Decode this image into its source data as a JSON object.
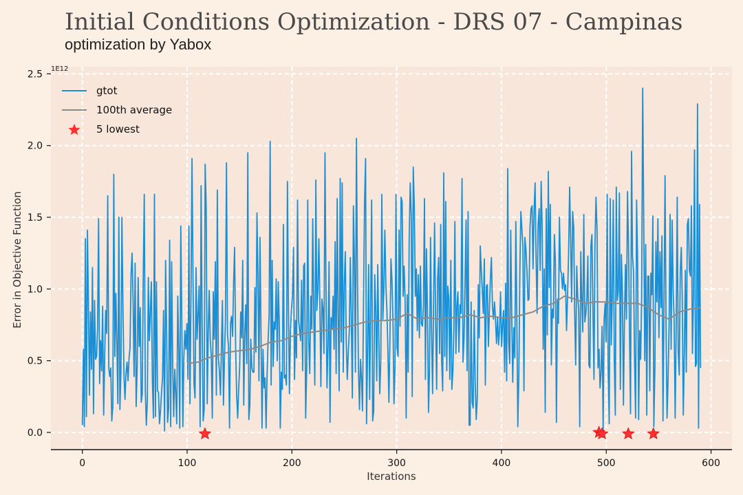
{
  "title": "Initial Conditions Optimization - DRS 07 - Campinas",
  "subtitle": "optimization by Yabox",
  "colors": {
    "background": "#fcefe4",
    "plot_background": "#f8e6da",
    "gtot": "#1a8fd6",
    "average": "#8a8a8a",
    "lowest": "#ff3030"
  },
  "chart_data": {
    "type": "line",
    "xlabel": "Iterations",
    "ylabel": "Error in Objective Function",
    "y_offset_label": "1E12",
    "xlim": [
      -30,
      620
    ],
    "ylim": [
      -0.12,
      2.55
    ],
    "x_ticks": [
      0,
      100,
      200,
      300,
      400,
      500,
      600
    ],
    "x_tick_labels": [
      "0",
      "100",
      "200",
      "300",
      "400",
      "500",
      "600"
    ],
    "y_ticks": [
      0.0,
      0.5,
      1.0,
      1.5,
      2.0,
      2.5
    ],
    "y_tick_labels": [
      "0.0",
      "0.5",
      "1.0",
      "1.5",
      "2.0",
      "2.5"
    ],
    "grid": true,
    "legend_position": "top-left",
    "series": [
      {
        "name": "gtot",
        "x_range": [
          0,
          590
        ],
        "values": [
          0.05,
          0.58,
          0.04,
          1.35,
          0.11,
          1.41,
          0.91,
          0.26,
          0.84,
          0.44,
          1.15,
          0.13,
          0.92,
          0.51,
          0.53,
          0.72,
          1.49,
          0.34,
          0.64,
          0.43,
          0.88,
          0.12,
          0.55,
          0.85,
          0.69,
          1.65,
          0.45,
          0.39,
          0.45,
          0.08,
          0.18,
          1.8,
          0.53,
          0.97,
          0.61,
          0.2,
          1.5,
          0.16,
          0.43,
          1.5,
          0.88,
          0.4,
          0.23,
          0.41,
          0.49,
          0.36,
          0.52,
          0.59,
          1.1,
          1.25,
          0.91,
          0.39,
          1.18,
          0.18,
          0.46,
          1.08,
          0.6,
          0.87,
          0.21,
          0.27,
          1.07,
          1.66,
          0.29,
          0.05,
          0.21,
          1.08,
          0.64,
          0.85,
          1.05,
          0.36,
          0.1,
          1.66,
          0.11,
          1.05,
          0.29,
          0.28,
          0.06,
          0.15,
          0.28,
          0.38,
          0.85,
          0.01,
          1.2,
          0.69,
          0.07,
          0.17,
          1.34,
          0.04,
          1.19,
          0.48,
          0.11,
          0.44,
          0.28,
          0.06,
          0.95,
          0.57,
          0.03,
          1.44,
          0.76,
          0.04,
          0.52,
          0.71,
          0.58,
          0.76,
          0.37,
          1.44,
          0.2,
          0.94,
          1.91,
          1.11,
          0.34,
          0.24,
          1.15,
          0.65,
          0.82,
          1.02,
          0.04,
          1.72,
          0.76,
          0.08,
          0.16,
          1.87,
          1.58,
          0.2,
          0.71,
          0.99,
          0.65,
          0.53,
          0.1,
          0.98,
          0.65,
          1.19,
          0.26,
          1.69,
          0.52,
          0.43,
          0.26,
          0.57,
          0.92,
          0.19,
          0.53,
          0.78,
          1.88,
          0.68,
          0.6,
          0.03,
          0.76,
          0.81,
          0.67,
          1.05,
          1.29,
          0.6,
          0.26,
          0.1,
          0.3,
          0.46,
          0.84,
          0.66,
          1.2,
          0.19,
          0.69,
          0.89,
          0.48,
          1.95,
          0.09,
          0.19,
          0.65,
          0.45,
          0.42,
          0.42,
          1.01,
          0.56,
          1.53,
          1.09,
          0.36,
          1.36,
          0.69,
          0.03,
          0.58,
          0.31,
          0.38,
          0.03,
          0.4,
          0.64,
          0.82,
          2.03,
          0.33,
          1.2,
          0.46,
          0.77,
          0.72,
          1.07,
          0.5,
          1.05,
          0.74,
          0.03,
          0.42,
          0.3,
          1.45,
          0.38,
          0.4,
          0.33,
          1.75,
          0.89,
          0.27,
          0.71,
          0.86,
          0.95,
          1.29,
          0.37,
          0.78,
          0.52,
          1.62,
          0.78,
          0.71,
          0.64,
          1.06,
          0.43,
          1.16,
          1.18,
          0.1,
          0.44,
          1.62,
          0.65,
          0.41,
          0.95,
          0.72,
          1.49,
          0.82,
          0.33,
          1.76,
          0.85,
          0.99,
          1.35,
          0.89,
          0.32,
          0.93,
          0.86,
          0.55,
          1.95,
          1.04,
          0.31,
          0.6,
          1.19,
          0.07,
          0.8,
          0.72,
          0.95,
          0.58,
          1.33,
          0.41,
          1.63,
          0.83,
          0.29,
          1.77,
          0.63,
          1.74,
          0.42,
          1.03,
          1.26,
          0.63,
          0.37,
          0.56,
          0.71,
          1.22,
          0.79,
          0.24,
          1.58,
          1.22,
          0.42,
          2.05,
          1.06,
          0.46,
          0.16,
          0.51,
          0.37,
          0.15,
          0.91,
          1.61,
          1.91,
          0.06,
          0.56,
          1.17,
          0.23,
          0.91,
          1.62,
          0.08,
          0.15,
          1.1,
          0.87,
          0.36,
          1.17,
          0.66,
          0.27,
          0.49,
          1.66,
          0.79,
          0.99,
          1.41,
          1.03,
          0.85,
          0.58,
          0.21,
          0.66,
          1.21,
          1.07,
          0.79,
          0.2,
          0.47,
          1.66,
          0.59,
          0.53,
          1.41,
          0.74,
          1.64,
          1.61,
          0.95,
          1.16,
          0.92,
          0.1,
          0.96,
          0.42,
          1.36,
          1.74,
          1.51,
          0.25,
          1.85,
          1.58,
          0.95,
          1.14,
          0.71,
          1.1,
          0.66,
          1.16,
          0.76,
          0.74,
          0.88,
          1.63,
          0.37,
          1.28,
          0.83,
          0.14,
          0.44,
          1.36,
          0.71,
          0.27,
          0.89,
          1.46,
          0.8,
          0.3,
          1.07,
          1.22,
          0.55,
          1.45,
          0.5,
          0.29,
          1.81,
          0.53,
          1.61,
          0.43,
          1.02,
          0.93,
          0.37,
          1.2,
          0.3,
          0.43,
          0.72,
          1.47,
          0.55,
          0.89,
          0.98,
          0.56,
          0.89,
          0.83,
          1.77,
          0.49,
          0.66,
          1.05,
          1.48,
          0.43,
          1.54,
          0.05,
          0.05,
          0.91,
          0.21,
          0.17,
          0.85,
          0.36,
          0.09,
          0.23,
          1.03,
          0.66,
          1.3,
          1.13,
          0.99,
          0.83,
          1.21,
          0.33,
          1.02,
          1.03,
          0.6,
          0.86,
          1.08,
          1.22,
          0.88,
          0.79,
          0.91,
          0.79,
          0.62,
          0.8,
          0.61,
          0.71,
          0.98,
          0.6,
          0.76,
          0.85,
          0.42,
          1.04,
          0.36,
          1.84,
          0.64,
          0.48,
          1.41,
          0.79,
          0.35,
          0.73,
          0.52,
          1.47,
          0.83,
          0.04,
          0.41,
          1.14,
          1.54,
          1.42,
          1.3,
          0.29,
          1.36,
          1.27,
          1.12,
          0.92,
          0.93,
          1.43,
          1.56,
          1.58,
          1.14,
          1.54,
          1.74,
          1.2,
          0.83,
          1.45,
          1.56,
          1.13,
          1.75,
          1.43,
          0.58,
          1.14,
          0.14,
          1.56,
          0.68,
          1.82,
          1.01,
          1.59,
          0.47,
          0.86,
          0.8,
          1.38,
          1.19,
          0.07,
          0.93,
          0.76,
          1.5,
          1.13,
          1.11,
          1.0,
          1.11,
          0.99,
          1.03,
          0.71,
          0.95,
          1.25,
          1.71,
          1.36,
          0.91,
          1.54,
          1.43,
          0.84,
          0.47,
          1.16,
          0.94,
          0.86,
          0.04,
          1.26,
          0.93,
          0.7,
          1.52,
          0.77,
          0.83,
          0.93,
          1.23,
          0.47,
          0.45,
          1.3,
          1.38,
          0.85,
          0.37,
          1.3,
          1.64,
          1.42,
          0.45,
          0.58,
          0.31,
          0.42,
          0.74,
          0.02,
          0.78,
          0.9,
          0.63,
          1.66,
          0.46,
          0.06,
          1.63,
          0.61,
          0.92,
          1.62,
          0.52,
          0.12,
          1.71,
          0.92,
          0.99,
          1.67,
          0.3,
          1.24,
          0.98,
          0.19,
          0.75,
          1.17,
          0.79,
          1.68,
          1.33,
          0.72,
          0.13,
          1.96,
          1.23,
          1.12,
          0.51,
          0.1,
          1.62,
          1.2,
          0.09,
          0.71,
          0.51,
          0.95,
          2.4,
          1.48,
          0.5,
          1.31,
          0.12,
          1.09,
          1.09,
          0.29,
          1.11,
          0.96,
          1.51,
          0.04,
          0.44,
          1.33,
          0.91,
          1.49,
          0.66,
          1.26,
          0.87,
          1.37,
          0.08,
          0.91,
          1.79,
          0.76,
          0.1,
          0.37,
          0.76,
          1.52,
          0.58,
          1.48,
          0.99,
          0.79,
          0.1,
          0.75,
          1.64,
          0.57,
          0.4,
          1.12,
          1.29,
          0.94,
          0.12,
          0.56,
          1.13,
          0.42,
          1.45,
          1.49,
          1.13,
          1.09,
          1.58,
          0.55,
          0.94,
          1.97,
          0.46,
          0.48,
          2.29,
          0.03,
          1.59,
          0.45
        ]
      },
      {
        "name": "100th average",
        "x": [
          100,
          110,
          120,
          130,
          140,
          150,
          160,
          170,
          180,
          190,
          200,
          210,
          220,
          230,
          240,
          250,
          260,
          270,
          280,
          290,
          300,
          310,
          320,
          330,
          340,
          350,
          360,
          370,
          380,
          390,
          400,
          410,
          420,
          430,
          440,
          450,
          460,
          470,
          480,
          490,
          500,
          510,
          520,
          530,
          540,
          550,
          560,
          570,
          580,
          590
        ],
        "values": [
          0.48,
          0.49,
          0.52,
          0.54,
          0.56,
          0.57,
          0.58,
          0.6,
          0.63,
          0.64,
          0.67,
          0.69,
          0.7,
          0.71,
          0.72,
          0.73,
          0.75,
          0.77,
          0.78,
          0.78,
          0.79,
          0.83,
          0.79,
          0.8,
          0.79,
          0.8,
          0.8,
          0.82,
          0.8,
          0.81,
          0.8,
          0.8,
          0.82,
          0.84,
          0.88,
          0.9,
          0.95,
          0.93,
          0.9,
          0.91,
          0.91,
          0.9,
          0.9,
          0.9,
          0.87,
          0.82,
          0.79,
          0.84,
          0.86,
          0.87
        ]
      },
      {
        "name": "5 lowest",
        "points": [
          [
            117,
            -0.01
          ],
          [
            493,
            0.0
          ],
          [
            496,
            -0.01
          ],
          [
            521,
            -0.01
          ],
          [
            545,
            -0.01
          ]
        ]
      }
    ]
  }
}
